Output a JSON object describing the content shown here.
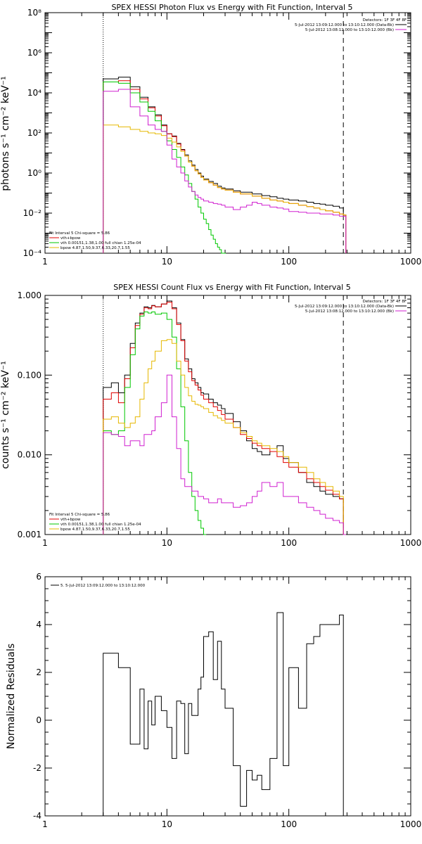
{
  "chart_data": [
    {
      "type": "line",
      "title": "SPEX HESSI Photon Flux vs Energy with Fit Function, Interval 5",
      "ylabel": "photons s⁻¹ cm⁻² keV⁻¹",
      "xlabel": "",
      "xscale": "log",
      "yscale": "log",
      "xlim": [
        1,
        1000
      ],
      "ylim": [
        0.0001,
        100000000
      ],
      "xticks": [
        1,
        10,
        100,
        1000
      ],
      "xtick_labels": [
        "1",
        "10",
        "100",
        "1000"
      ],
      "yticks": [
        0.0001,
        0.01,
        1,
        100,
        10000,
        1000000,
        100000000
      ],
      "ytick_labels": [
        "10⁻⁴",
        "10⁻²",
        "10⁰",
        "10²",
        "10⁴",
        "10⁶",
        "10⁸"
      ],
      "vlines": [
        {
          "x": 3,
          "style": "dotted"
        },
        {
          "x": 280,
          "style": "dashed"
        }
      ],
      "legend_top_right": [
        "Detectors: 1F 3F 4F 8F",
        "5-Jul-2012 13:09:12.000 to 13:10:12.000 (Data-Bk)",
        "5-Jul-2012 13:08:12.000 to 13:10:12.000 (Bk)"
      ],
      "legend_bottom_left": [
        "Fit Interval 5   Chi-square = 5.86",
        "vth+bpow",
        "vth 0.00151,1.38,1.00  full chian 1.25e-04",
        "bpow 4.87,1.50,9.37,6.33,20.7,1.55"
      ],
      "series": [
        {
          "name": "Data-Bk",
          "color": "#000000",
          "x": [
            3,
            4,
            5,
            6,
            7,
            8,
            9,
            10,
            11,
            12,
            13,
            14,
            15,
            16,
            17,
            18,
            19,
            20,
            22,
            24,
            26,
            28,
            30,
            35,
            40,
            50,
            60,
            70,
            80,
            90,
            100,
            120,
            140,
            160,
            180,
            200,
            230,
            260,
            280
          ],
          "y": [
            50000,
            60000,
            20000,
            6000,
            2000,
            800,
            250,
            90,
            70,
            30,
            15,
            8,
            4,
            2.5,
            1.5,
            1,
            0.7,
            0.5,
            0.38,
            0.3,
            0.22,
            0.18,
            0.16,
            0.13,
            0.11,
            0.09,
            0.075,
            0.065,
            0.055,
            0.05,
            0.045,
            0.04,
            0.035,
            0.03,
            0.028,
            0.025,
            0.022,
            0.018,
            0.008
          ]
        },
        {
          "name": "vth+bpow",
          "color": "#e00000",
          "x": [
            3,
            4,
            5,
            6,
            7,
            8,
            9,
            10,
            11,
            12,
            13,
            14,
            15,
            16,
            17,
            18,
            19,
            20,
            22,
            24,
            26,
            28,
            30,
            35,
            40,
            50,
            60,
            70,
            80,
            90,
            100,
            120,
            140,
            160,
            180,
            200,
            230,
            260,
            280
          ],
          "y": [
            35000,
            40000,
            15000,
            5000,
            1800,
            700,
            230,
            90,
            65,
            28,
            14,
            7,
            3.5,
            2.2,
            1.3,
            0.9,
            0.6,
            0.45,
            0.33,
            0.25,
            0.19,
            0.16,
            0.14,
            0.11,
            0.09,
            0.07,
            0.055,
            0.045,
            0.04,
            0.035,
            0.03,
            0.025,
            0.021,
            0.018,
            0.015,
            0.013,
            0.011,
            0.009,
            0.008
          ]
        },
        {
          "name": "vth",
          "color": "#00c800",
          "x": [
            3,
            4,
            5,
            6,
            7,
            8,
            9,
            10,
            11,
            12,
            13,
            14,
            15,
            16,
            17,
            18,
            19,
            20,
            21,
            22,
            23,
            24,
            25,
            26,
            27,
            28,
            29
          ],
          "y": [
            35000,
            30000,
            10000,
            3500,
            1200,
            400,
            120,
            40,
            15,
            6,
            2,
            0.8,
            0.3,
            0.12,
            0.05,
            0.02,
            0.01,
            0.005,
            0.003,
            0.0015,
            0.0008,
            0.0005,
            0.0003,
            0.0002,
            0.00015,
            0.0001,
            0.0001
          ]
        },
        {
          "name": "bpow",
          "color": "#e6b800",
          "x": [
            3,
            4,
            5,
            6,
            7,
            8,
            9,
            10,
            11,
            12,
            13,
            14,
            15,
            16,
            17,
            18,
            19,
            20,
            22,
            24,
            26,
            28,
            30,
            35,
            40,
            50,
            60,
            70,
            80,
            90,
            100,
            120,
            140,
            160,
            180,
            200,
            230,
            260,
            280
          ],
          "y": [
            250,
            200,
            150,
            120,
            100,
            90,
            75,
            55,
            35,
            20,
            12,
            7,
            3.5,
            2.2,
            1.3,
            0.9,
            0.6,
            0.45,
            0.33,
            0.25,
            0.19,
            0.16,
            0.14,
            0.11,
            0.09,
            0.07,
            0.055,
            0.045,
            0.04,
            0.035,
            0.03,
            0.025,
            0.021,
            0.018,
            0.015,
            0.013,
            0.011,
            0.009,
            0.008
          ]
        },
        {
          "name": "Bk",
          "color": "#d020d0",
          "x": [
            3,
            4,
            5,
            6,
            7,
            8,
            9,
            10,
            11,
            12,
            13,
            14,
            15,
            16,
            17,
            18,
            19,
            20,
            22,
            24,
            26,
            28,
            30,
            35,
            40,
            45,
            50,
            55,
            60,
            70,
            80,
            90,
            100,
            120,
            140,
            160,
            180,
            200,
            230,
            260,
            280
          ],
          "y": [
            12000,
            15000,
            2000,
            700,
            250,
            150,
            120,
            25,
            5,
            2,
            1,
            0.4,
            0.2,
            0.12,
            0.08,
            0.06,
            0.05,
            0.04,
            0.035,
            0.03,
            0.028,
            0.025,
            0.02,
            0.015,
            0.02,
            0.025,
            0.035,
            0.03,
            0.025,
            0.02,
            0.018,
            0.016,
            0.012,
            0.011,
            0.01,
            0.01,
            0.009,
            0.009,
            0.008,
            0.007,
            0.007
          ]
        }
      ]
    },
    {
      "type": "line",
      "title": "SPEX HESSI Count Flux vs Energy with Fit Function, Interval 5",
      "ylabel": "counts s⁻¹ cm⁻² keV⁻¹",
      "xlabel": "",
      "xscale": "log",
      "yscale": "log",
      "xlim": [
        1,
        1000
      ],
      "ylim": [
        0.001,
        1
      ],
      "xticks": [
        1,
        10,
        100,
        1000
      ],
      "xtick_labels": [
        "1",
        "10",
        "100",
        "1000"
      ],
      "yticks": [
        0.001,
        0.01,
        0.1,
        1
      ],
      "ytick_labels": [
        "0.001",
        "0.010",
        "0.100",
        "1.000"
      ],
      "vlines": [
        {
          "x": 3,
          "style": "dotted"
        },
        {
          "x": 280,
          "style": "dashed"
        }
      ],
      "legend_top_right": [
        "Detectors: 1F 3F 4F 8F",
        "5-Jul-2012 13:09:12.000 to 13:10:12.000 (Data-Bk)",
        "5-Jul-2012 13:08:12.000 to 13:10:12.000 (Bk)"
      ],
      "legend_bottom_left": [
        "Fit Interval 5   Chi-square = 5.86",
        "vth+bpow",
        "vth 0.00151,1.38,1.00  full chian 1.25e-04",
        "bpow 4.87,1.50,9.37,6.33,20.7,1.55"
      ],
      "series": [
        {
          "name": "Data-Bk",
          "color": "#000000",
          "x": [
            3,
            3.5,
            4,
            4.5,
            5,
            5.5,
            6,
            6.5,
            7,
            7.5,
            8,
            9,
            10,
            11,
            12,
            13,
            14,
            15,
            16,
            17,
            18,
            19,
            20,
            22,
            24,
            26,
            28,
            30,
            35,
            40,
            45,
            50,
            55,
            60,
            70,
            80,
            90,
            100,
            120,
            140,
            160,
            180,
            200,
            230,
            260,
            280
          ],
          "y": [
            0.07,
            0.08,
            0.06,
            0.1,
            0.25,
            0.45,
            0.6,
            0.72,
            0.7,
            0.75,
            0.72,
            0.78,
            0.85,
            0.7,
            0.45,
            0.28,
            0.16,
            0.12,
            0.09,
            0.08,
            0.07,
            0.06,
            0.058,
            0.05,
            0.045,
            0.042,
            0.038,
            0.033,
            0.026,
            0.02,
            0.015,
            0.012,
            0.011,
            0.01,
            0.011,
            0.013,
            0.009,
            0.008,
            0.006,
            0.0045,
            0.004,
            0.0035,
            0.0032,
            0.003,
            0.0028,
            0.001
          ]
        },
        {
          "name": "vth+bpow",
          "color": "#e00000",
          "x": [
            3,
            3.5,
            4,
            4.5,
            5,
            5.5,
            6,
            6.5,
            7,
            7.5,
            8,
            9,
            10,
            11,
            12,
            13,
            14,
            15,
            16,
            17,
            18,
            19,
            20,
            22,
            24,
            26,
            28,
            30,
            35,
            40,
            45,
            50,
            55,
            60,
            70,
            80,
            90,
            100,
            120,
            140,
            160,
            180,
            200,
            230,
            260,
            280
          ],
          "y": [
            0.05,
            0.06,
            0.045,
            0.09,
            0.22,
            0.42,
            0.58,
            0.7,
            0.68,
            0.74,
            0.72,
            0.78,
            0.82,
            0.68,
            0.43,
            0.27,
            0.15,
            0.11,
            0.085,
            0.075,
            0.065,
            0.056,
            0.05,
            0.045,
            0.04,
            0.036,
            0.032,
            0.028,
            0.022,
            0.018,
            0.016,
            0.014,
            0.013,
            0.012,
            0.011,
            0.0095,
            0.008,
            0.007,
            0.006,
            0.005,
            0.0045,
            0.004,
            0.0036,
            0.0032,
            0.0028,
            0.001
          ]
        },
        {
          "name": "vth",
          "color": "#00c800",
          "x": [
            3,
            3.5,
            4,
            4.5,
            5,
            5.5,
            6,
            6.5,
            7,
            7.5,
            8,
            9,
            10,
            11,
            12,
            13,
            14,
            15,
            16,
            17,
            18,
            19,
            20
          ],
          "y": [
            0.02,
            0.018,
            0.02,
            0.07,
            0.18,
            0.38,
            0.55,
            0.62,
            0.6,
            0.62,
            0.58,
            0.6,
            0.5,
            0.3,
            0.12,
            0.04,
            0.015,
            0.006,
            0.003,
            0.002,
            0.0015,
            0.0012,
            0.001
          ]
        },
        {
          "name": "bpow",
          "color": "#e6b800",
          "x": [
            3,
            3.5,
            4,
            4.5,
            5,
            5.5,
            6,
            6.5,
            7,
            7.5,
            8,
            9,
            10,
            11,
            12,
            13,
            14,
            15,
            16,
            17,
            18,
            19,
            20,
            22,
            24,
            26,
            28,
            30,
            35,
            40,
            45,
            50,
            55,
            60,
            70,
            80,
            90,
            100,
            120,
            140,
            160,
            180,
            200,
            230,
            260,
            280
          ],
          "y": [
            0.028,
            0.03,
            0.025,
            0.022,
            0.025,
            0.03,
            0.05,
            0.08,
            0.12,
            0.15,
            0.2,
            0.27,
            0.28,
            0.25,
            0.15,
            0.1,
            0.07,
            0.055,
            0.047,
            0.043,
            0.042,
            0.04,
            0.038,
            0.034,
            0.031,
            0.029,
            0.027,
            0.025,
            0.022,
            0.019,
            0.017,
            0.015,
            0.014,
            0.013,
            0.012,
            0.011,
            0.0095,
            0.008,
            0.007,
            0.006,
            0.005,
            0.0045,
            0.004,
            0.0035,
            0.003,
            0.001
          ]
        },
        {
          "name": "Bk",
          "color": "#d020d0",
          "x": [
            3,
            3.5,
            4,
            4.5,
            5,
            5.5,
            6,
            6.5,
            7,
            7.5,
            8,
            9,
            10,
            11,
            12,
            13,
            14,
            15,
            16,
            17,
            18,
            19,
            20,
            22,
            24,
            26,
            28,
            30,
            35,
            40,
            45,
            50,
            55,
            60,
            70,
            80,
            90,
            100,
            120,
            140,
            160,
            180,
            200,
            230,
            260,
            280
          ],
          "y": [
            0.019,
            0.018,
            0.017,
            0.013,
            0.015,
            0.015,
            0.013,
            0.018,
            0.018,
            0.02,
            0.03,
            0.045,
            0.1,
            0.03,
            0.012,
            0.005,
            0.004,
            0.004,
            0.0035,
            0.0035,
            0.003,
            0.003,
            0.0028,
            0.0025,
            0.0025,
            0.0028,
            0.0025,
            0.0025,
            0.0022,
            0.0023,
            0.0025,
            0.003,
            0.0035,
            0.0045,
            0.004,
            0.0045,
            0.003,
            0.003,
            0.0025,
            0.0022,
            0.002,
            0.0018,
            0.0016,
            0.0015,
            0.0014,
            0.001
          ]
        }
      ]
    },
    {
      "type": "line",
      "title": "",
      "ylabel": "Normalized Residuals",
      "xlabel": "",
      "xscale": "log",
      "yscale": "linear",
      "xlim": [
        1,
        1000
      ],
      "ylim": [
        -4,
        6
      ],
      "xticks": [
        1,
        10,
        100,
        1000
      ],
      "xtick_labels": [
        "1",
        "10",
        "100",
        "1000"
      ],
      "yticks": [
        -4,
        -2,
        0,
        2,
        4,
        6
      ],
      "ytick_labels": [
        "-4",
        "-2",
        "0",
        "2",
        "4",
        "6"
      ],
      "legend_top_left": "5-Jul-2012 13:09:12.000 to 13:10:12.000",
      "series": [
        {
          "name": "5-Jul-2012 13:09:12.000 to 13:10:12.000",
          "color": "#000000",
          "x": [
            3,
            3.5,
            4,
            4.5,
            5,
            5.5,
            6,
            6.5,
            7,
            7.5,
            8,
            9,
            10,
            11,
            12,
            13,
            14,
            15,
            16,
            17,
            18,
            19,
            20,
            22,
            24,
            26,
            28,
            30,
            35,
            40,
            45,
            50,
            55,
            60,
            70,
            80,
            90,
            100,
            120,
            140,
            160,
            180,
            200,
            230,
            260,
            280
          ],
          "y": [
            2.8,
            2.8,
            2.2,
            2.2,
            -1,
            -1,
            1.3,
            -1.2,
            0.8,
            -0.2,
            1,
            0.4,
            -0.3,
            -1.6,
            0.8,
            0.7,
            -1.4,
            0.7,
            0.2,
            0.2,
            1.3,
            1.8,
            3.5,
            3.7,
            1.7,
            3.3,
            1.3,
            0.5,
            -1.9,
            -3.6,
            -2.1,
            -2.5,
            -2.3,
            -2.9,
            -1.6,
            4.5,
            -1.9,
            2.2,
            0.5,
            3.2,
            3.5,
            4.0,
            4.0,
            4.0,
            4.4,
            -4
          ]
        }
      ]
    }
  ]
}
